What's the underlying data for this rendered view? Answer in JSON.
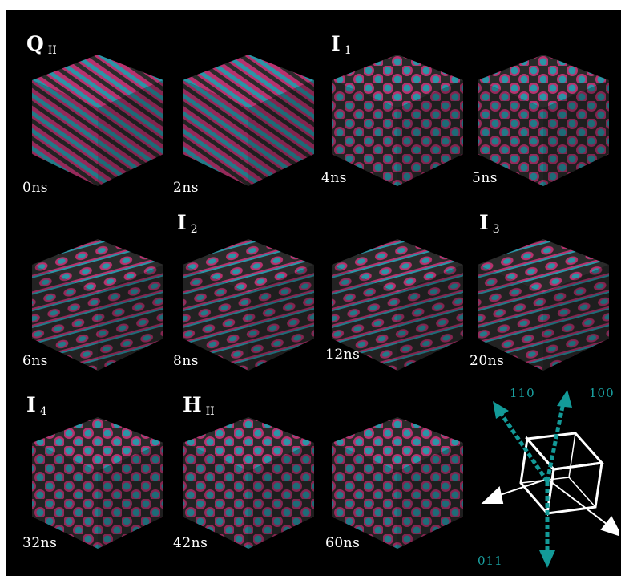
{
  "colors": {
    "background": "#000000",
    "label": "#ffffff",
    "pink": "#b8326e",
    "cyan": "#2a95a6",
    "dark": "#2a2a2a",
    "axis_teal": "#139a98",
    "cube_outline": "#ffffff"
  },
  "phases": [
    {
      "id": "QII",
      "main": "Q",
      "sub": "II"
    },
    {
      "id": "I1",
      "main": "I",
      "sub": "1"
    },
    {
      "id": "I2",
      "main": "I",
      "sub": "2"
    },
    {
      "id": "I3",
      "main": "I",
      "sub": "3"
    },
    {
      "id": "I4",
      "main": "I",
      "sub": "4"
    },
    {
      "id": "HII",
      "main": "H",
      "sub": "II"
    }
  ],
  "frames": [
    {
      "time": "0ns",
      "pattern": "stripes"
    },
    {
      "time": "2ns",
      "pattern": "stripes"
    },
    {
      "time": "4ns",
      "pattern": "spots"
    },
    {
      "time": "5ns",
      "pattern": "spots"
    },
    {
      "time": "6ns",
      "pattern": "mixed"
    },
    {
      "time": "8ns",
      "pattern": "mixed"
    },
    {
      "time": "12ns",
      "pattern": "mixed"
    },
    {
      "time": "20ns",
      "pattern": "mixed"
    },
    {
      "time": "32ns",
      "pattern": "spots"
    },
    {
      "time": "42ns",
      "pattern": "spots"
    },
    {
      "time": "60ns",
      "pattern": "spots"
    }
  ],
  "axes": {
    "a110": "110",
    "a100": "100",
    "a011": "011"
  }
}
